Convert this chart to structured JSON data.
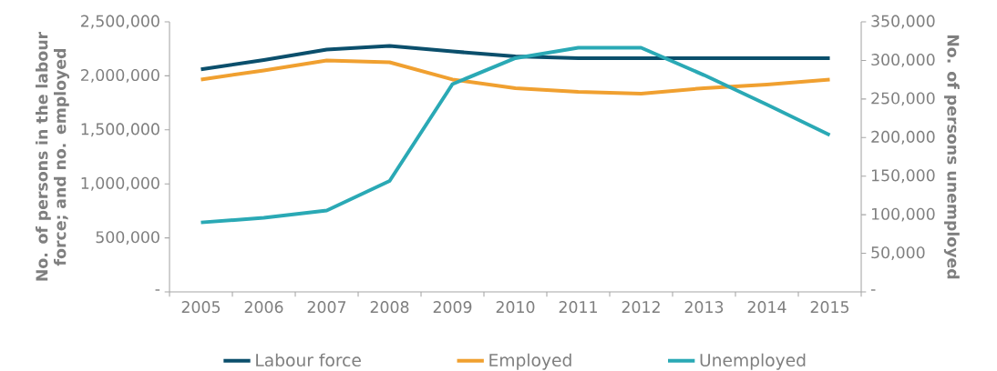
{
  "chart_data": {
    "type": "line",
    "ylabel": "No. of persons in the labour force; and no. employed",
    "y2label": "No. of persons unemployed",
    "categories": [
      "2005",
      "2006",
      "2007",
      "2008",
      "2009",
      "2010",
      "2011",
      "2012",
      "2013",
      "2014",
      "2015"
    ],
    "series": [
      {
        "name": "Labour force",
        "color": "#0b4f6c",
        "values": [
          2060000,
          2146000,
          2243000,
          2277000,
          2226000,
          2180000,
          2163000,
          2163000,
          2163000,
          2163000,
          2163000
        ]
      },
      {
        "name": "Employed",
        "color": "#f0a030",
        "values": [
          1966000,
          2050000,
          2142000,
          2125000,
          1966000,
          1886000,
          1852000,
          1835000,
          1886000,
          1920000,
          1966000
        ]
      },
      {
        "name": "Unemployed",
        "color": "#2aa9b5",
        "axis": "y2",
        "values": [
          90000,
          96000,
          105500,
          143800,
          269300,
          302900,
          316400,
          316400,
          281000,
          242800,
          203300
        ]
      }
    ],
    "ylim": [
      0,
      2500000
    ],
    "yticks": [
      {
        "value": 0,
        "label": "-"
      },
      {
        "value": 500000,
        "label": "500,000"
      },
      {
        "value": 1000000,
        "label": "1,000,000"
      },
      {
        "value": 1500000,
        "label": "1,500,000"
      },
      {
        "value": 2000000,
        "label": "2,000,000"
      },
      {
        "value": 2500000,
        "label": "2,500,000"
      }
    ],
    "y2lim": [
      0,
      350000
    ],
    "y2ticks": [
      {
        "value": 0,
        "label": "-"
      },
      {
        "value": 50000,
        "label": "50,000"
      },
      {
        "value": 100000,
        "label": "100,000"
      },
      {
        "value": 150000,
        "label": "150,000"
      },
      {
        "value": 200000,
        "label": "200,000"
      },
      {
        "value": 250000,
        "label": "250,000"
      },
      {
        "value": 300000,
        "label": "300,000"
      },
      {
        "value": 350000,
        "label": "350,000"
      }
    ],
    "grid": false,
    "legend": "bottom",
    "marker": "none",
    "line_style": "solid"
  }
}
